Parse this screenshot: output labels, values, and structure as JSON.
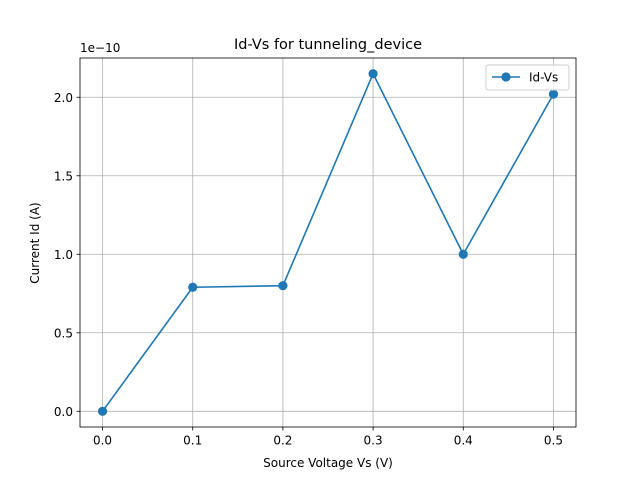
{
  "chart_data": {
    "type": "line",
    "title": "Id-Vs for tunneling_device",
    "xlabel": "Source Voltage Vs (V)",
    "ylabel": "Current Id (A)",
    "y_offset_text": "1e−10",
    "x": [
      0.0,
      0.1,
      0.2,
      0.3,
      0.4,
      0.5
    ],
    "xlim": [
      -0.025,
      0.525
    ],
    "ylim": [
      -0.1,
      2.25
    ],
    "y_scale_factor": "1e-10",
    "x_ticks": [
      0.0,
      0.1,
      0.2,
      0.3,
      0.4,
      0.5
    ],
    "x_tick_labels": [
      "0.0",
      "0.1",
      "0.2",
      "0.3",
      "0.4",
      "0.5"
    ],
    "y_ticks": [
      0.0,
      0.5,
      1.0,
      1.5,
      2.0
    ],
    "y_tick_labels": [
      "0.0",
      "0.5",
      "1.0",
      "1.5",
      "2.0"
    ],
    "grid": true,
    "legend_position": "top-right",
    "series": [
      {
        "name": "Id-Vs",
        "color": "#1f77b4",
        "marker": "circle",
        "values": [
          0.0,
          0.79,
          0.8,
          2.15,
          1.0,
          2.02
        ]
      }
    ]
  }
}
